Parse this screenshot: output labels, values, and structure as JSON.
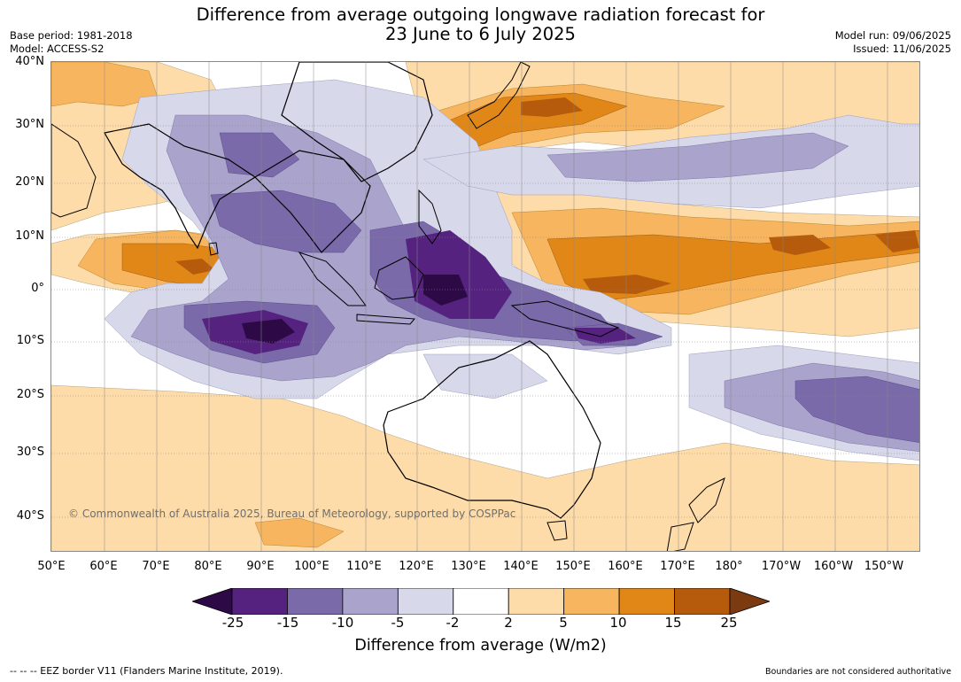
{
  "title_line1": "Difference from average outgoing longwave radiation forecast for",
  "title_line2": "23 June to 6 July 2025",
  "meta_left": {
    "base_period": "Base period: 1981-2018",
    "model": "Model: ACCESS-S2"
  },
  "meta_right": {
    "model_run": "Model run: 09/06/2025",
    "issued": "Issued: 11/06/2025"
  },
  "lat_labels": [
    "40°N",
    "30°N",
    "20°N",
    "10°N",
    "0°",
    "10°S",
    "20°S",
    "30°S",
    "40°S"
  ],
  "lon_labels": [
    "50°E",
    "60°E",
    "70°E",
    "80°E",
    "90°E",
    "100°E",
    "110°E",
    "120°E",
    "130°E",
    "140°E",
    "150°E",
    "160°E",
    "170°E",
    "180°",
    "170°W",
    "160°W",
    "150°W"
  ],
  "colorbar": {
    "ticks": [
      "-25",
      "-15",
      "-10",
      "-5",
      "-2",
      "2",
      "5",
      "10",
      "15",
      "25"
    ],
    "colors": [
      "#2d0a45",
      "#55237f",
      "#7a6aa9",
      "#aaa3cc",
      "#d7d8ea",
      "#ffffff",
      "#fddcaa",
      "#f8b55f",
      "#e08718",
      "#b65b0b",
      "#7b3a10"
    ],
    "title": "Difference from average (W/m2)"
  },
  "copyright": "© Commonwealth of Australia 2025, Bureau of Meteorology, supported by COSPPac",
  "footer_left": "--  --  -- EEZ border V11 (Flanders Marine Institute, 2019).",
  "footer_right": "Boundaries are not considered authoritative"
}
